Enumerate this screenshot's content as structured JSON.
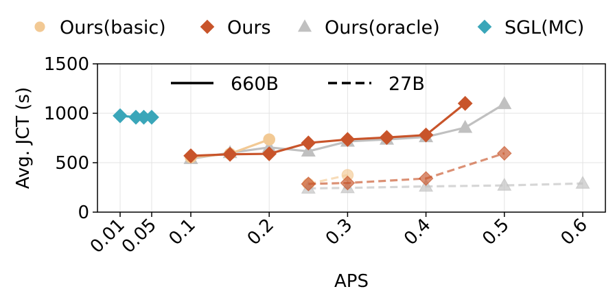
{
  "chart_data": {
    "type": "line",
    "xlabel": "APS",
    "ylabel": "Avg. JCT (s)",
    "ylim": [
      0,
      1500
    ],
    "yticks": [
      0,
      500,
      1000,
      1500
    ],
    "x_tick_labels": [
      "0.01",
      "0.05",
      "0.1",
      "0.2",
      "0.3",
      "0.4",
      "0.5",
      "0.6"
    ],
    "grid": true,
    "legend_placement": "top, above plot",
    "legend": [
      {
        "label": "Ours(basic)",
        "marker": "circle",
        "color": "#F2C994"
      },
      {
        "label": "Ours",
        "marker": "diamond",
        "color": "#C8542A"
      },
      {
        "label": "Ours(oracle)",
        "marker": "triangle",
        "color": "#C0C0C0"
      },
      {
        "label": "SGL(MC)",
        "marker": "diamond",
        "color": "#3AA6B9"
      }
    ],
    "linestyle_legend": [
      {
        "label": "660B",
        "style": "solid"
      },
      {
        "label": "27B",
        "style": "dashed"
      }
    ],
    "series": [
      {
        "name": "Ours(basic)",
        "model": "660B",
        "marker": "circle",
        "color": "#F2C994",
        "style": "solid",
        "x": [
          0.1,
          0.15,
          0.2
        ],
        "y": [
          555,
          590,
          735
        ]
      },
      {
        "name": "Ours",
        "model": "660B",
        "marker": "diamond",
        "color": "#C8542A",
        "style": "solid",
        "x": [
          0.1,
          0.15,
          0.2,
          0.25,
          0.3,
          0.35,
          0.4,
          0.45
        ],
        "y": [
          570,
          585,
          590,
          700,
          735,
          755,
          780,
          1100
        ]
      },
      {
        "name": "Ours(oracle)",
        "model": "660B",
        "marker": "triangle",
        "color": "#C0C0C0",
        "style": "solid",
        "x": [
          0.1,
          0.15,
          0.2,
          0.25,
          0.3,
          0.35,
          0.4,
          0.45,
          0.5
        ],
        "y": [
          540,
          600,
          655,
          615,
          715,
          735,
          760,
          855,
          1095
        ]
      },
      {
        "name": "SGL(MC)",
        "model": "660B",
        "marker": "diamond",
        "color": "#3AA6B9",
        "style": "solid",
        "x": [
          0.01,
          0.03,
          0.04,
          0.05
        ],
        "y": [
          975,
          960,
          960,
          960
        ]
      },
      {
        "name": "Ours(basic)",
        "model": "27B",
        "marker": "circle",
        "color": "#F2C994",
        "style": "dashed",
        "x": [
          0.25,
          0.3
        ],
        "y": [
          285,
          375
        ]
      },
      {
        "name": "Ours",
        "model": "27B",
        "marker": "diamond",
        "color": "#C8542A",
        "style": "dashed",
        "x": [
          0.25,
          0.3,
          0.4,
          0.5
        ],
        "y": [
          285,
          295,
          340,
          595
        ]
      },
      {
        "name": "Ours(oracle)",
        "model": "27B",
        "marker": "triangle",
        "color": "#C0C0C0",
        "style": "dashed",
        "x": [
          0.25,
          0.3,
          0.4,
          0.5,
          0.6
        ],
        "y": [
          240,
          245,
          260,
          270,
          290
        ]
      }
    ]
  }
}
